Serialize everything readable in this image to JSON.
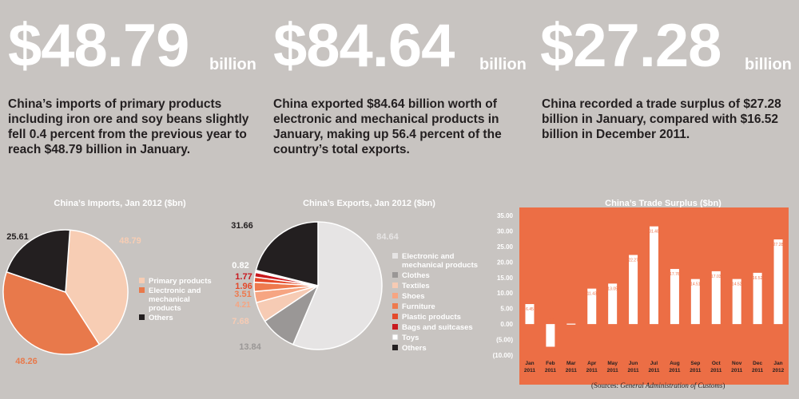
{
  "stats": [
    {
      "value": "$48.79",
      "unit": "billion",
      "text": "China’s imports of primary products including iron ore and soy beans slightly fell 0.4 percent from the previous year to reach $48.79 billion in January."
    },
    {
      "value": "$84.64",
      "unit": "billion",
      "text": "China exported $84.64 billion worth of electronic and mechanical products in January, making up 56.4 percent of the country’s total exports."
    },
    {
      "value": "$27.28",
      "unit": "billion",
      "text": "China recorded a trade surplus of $27.28 billion in January, compared with $16.52 billion in December 2011."
    }
  ],
  "source": {
    "prefix": "(Sources: ",
    "name": "General Administration of Customs",
    "suffix": ")"
  },
  "chart_data": [
    {
      "type": "pie",
      "title": "China’s Imports, Jan 2012 ($bn)",
      "categories": [
        "Primary products",
        "Electronic and mechanical products",
        "Others"
      ],
      "legend_labels": [
        "Primary products",
        "Electronic and|mechanical|products",
        "Others"
      ],
      "values": [
        48.79,
        48.26,
        25.61
      ],
      "value_labels": [
        "48.79",
        "48.26",
        "25.61"
      ],
      "colors": [
        "#f7cdb4",
        "#e8794b",
        "#231f20"
      ],
      "label_colors": [
        "#f7cdb4",
        "#e8794b",
        "#231f20"
      ]
    },
    {
      "type": "pie",
      "title": "China’s Exports, Jan 2012 ($bn)",
      "categories": [
        "Electronic and mechanical products",
        "Clothes",
        "Textiles",
        "Shoes",
        "Furniture",
        "Plastic products",
        "Bags and suitcases",
        "Toys",
        "Others"
      ],
      "legend_labels": [
        "Electronic and|mechanical products",
        "Clothes",
        "Textiles",
        "Shoes",
        "Furniture",
        "Plastic products",
        "Bags and suitcases",
        "Toys",
        "Others"
      ],
      "values": [
        84.64,
        13.84,
        7.68,
        4.21,
        3.51,
        1.96,
        1.77,
        0.82,
        31.66
      ],
      "value_labels": [
        "84.64",
        "13.84",
        "7.68",
        "4.21",
        "3.51",
        "1.96",
        "1.77",
        "0.82",
        "31.66"
      ],
      "colors": [
        "#e6e4e4",
        "#9a9796",
        "#f6cbb4",
        "#f6a582",
        "#ee7a4e",
        "#e4492a",
        "#c8191e",
        "#ffffff",
        "#231f20"
      ],
      "label_colors": [
        "#e6e4e4",
        "#9a9796",
        "#f6cbb4",
        "#f6a582",
        "#ee7a4e",
        "#e4492a",
        "#c8191e",
        "#ffffff",
        "#231f20"
      ]
    },
    {
      "type": "bar",
      "title": "China’s Trade Surplus ($bn)",
      "categories": [
        "Jan 2011",
        "Feb 2011",
        "Mar 2011",
        "Apr 2011",
        "May 2011",
        "Jun 2011",
        "Jul 2011",
        "Aug 2011",
        "Sep 2011",
        "Oct 2011",
        "Nov 2011",
        "Dec 2011",
        "Jan 2012"
      ],
      "values": [
        6.45,
        -7.3,
        0.14,
        11.43,
        13.05,
        22.27,
        31.48,
        17.76,
        14.51,
        17.03,
        14.52,
        16.52,
        27.28
      ],
      "data_labels": [
        "6.45",
        "-7.3",
        "0.14",
        "11.43",
        "13.05",
        "22.27",
        "31.48",
        "17.76",
        "14.51",
        "17.03",
        "14.52",
        "16.52",
        "27.28"
      ],
      "yticks": [
        "35.00",
        "30.00",
        "25.00",
        "20.00",
        "15.00",
        "10.00",
        "5.00",
        "0.00",
        "(5.00)",
        "(10.00)"
      ],
      "ylim": [
        -10,
        35
      ],
      "bg_color": "#ec6e45",
      "bar_color": "#ffffff"
    }
  ]
}
